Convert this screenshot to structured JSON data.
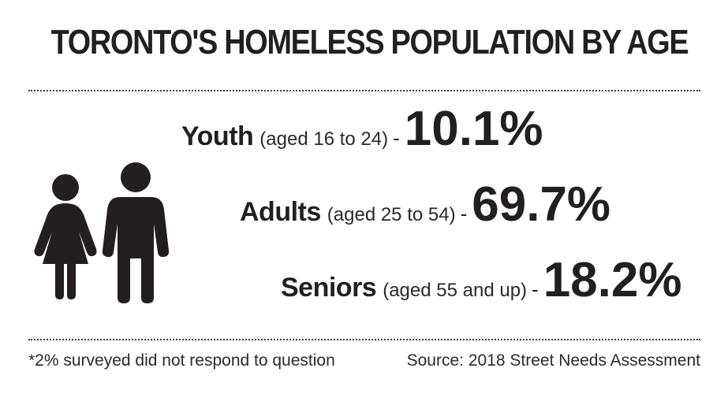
{
  "title": "TORONTO'S HOMELESS POPULATION BY AGE",
  "groups": [
    {
      "name": "Youth",
      "desc": "(aged 16 to 24)",
      "dash": "-",
      "pct": "10.1%"
    },
    {
      "name": "Adults",
      "desc": "(aged 25 to 54)",
      "dash": "-",
      "pct": "69.7%"
    },
    {
      "name": "Seniors",
      "desc": "(aged 55 and up)",
      "dash": "-",
      "pct": "18.2%"
    }
  ],
  "footnote": "*2% surveyed did not respond to question",
  "source": "Source: 2018 Street Needs Assessment",
  "icons": [
    "female-person-icon",
    "male-person-icon"
  ],
  "colors": {
    "text": "#231f20",
    "icon": "#231f20",
    "background": "#ffffff"
  }
}
